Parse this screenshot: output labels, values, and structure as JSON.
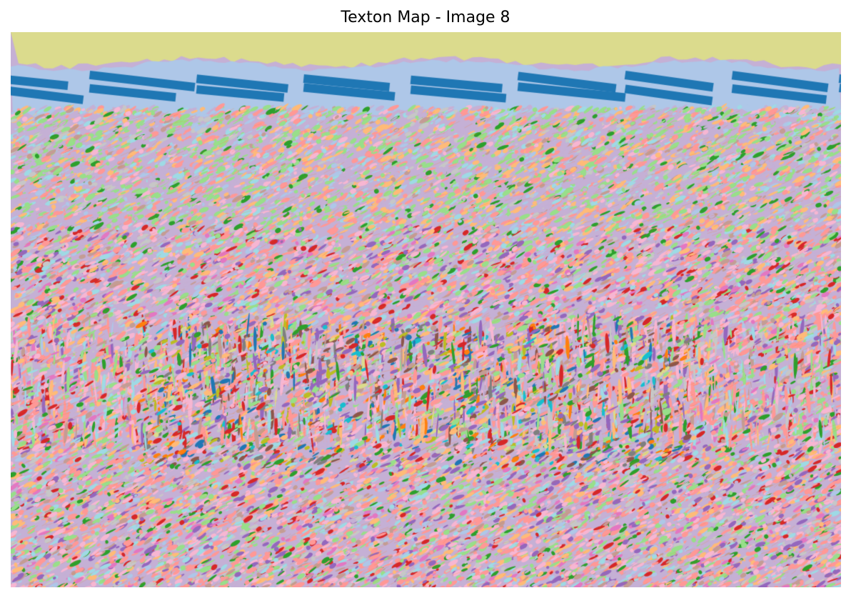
{
  "figure": {
    "title": "Texton Map - Image 8"
  },
  "texton_map": {
    "palette": [
      "#1f77b4",
      "#aec7e8",
      "#ff7f0e",
      "#ffbb78",
      "#2ca02c",
      "#98df8a",
      "#d62728",
      "#ff9896",
      "#9467bd",
      "#c5b0d5",
      "#8c564b",
      "#c49c94",
      "#e377c2",
      "#f7b6d2",
      "#7f7f7f",
      "#c7c7c7",
      "#bcbd22",
      "#dbdb8d",
      "#17becf",
      "#9edae5"
    ],
    "axis": "off"
  }
}
